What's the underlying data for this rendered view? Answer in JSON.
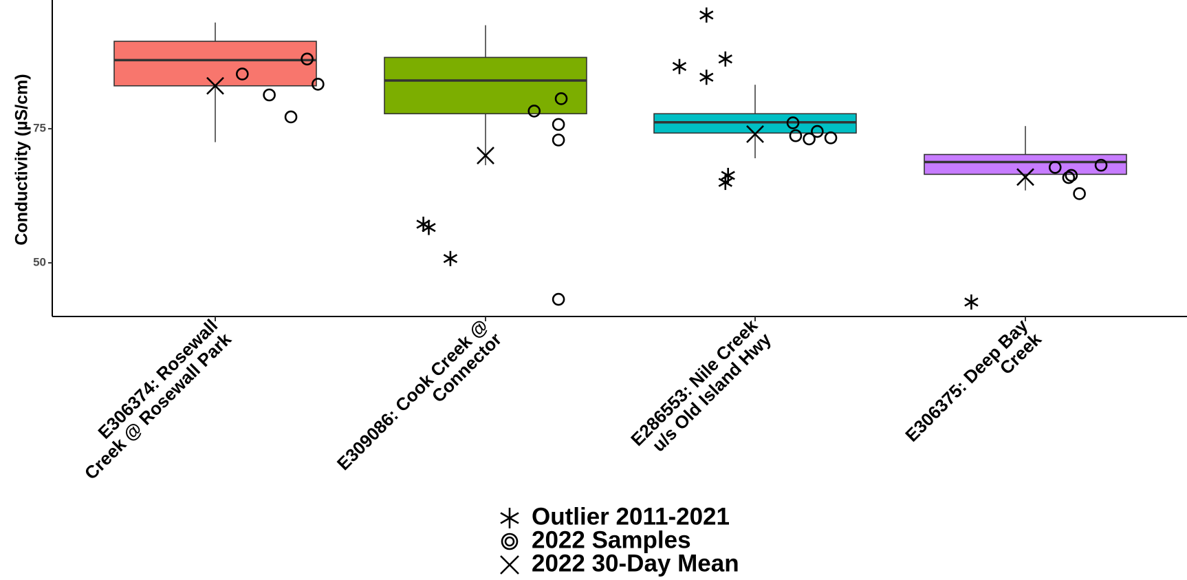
{
  "chart_data": {
    "type": "box",
    "ylabel": "Conductivity (µS/cm)",
    "xlabel": "",
    "yticks": [
      50,
      75
    ],
    "ylim": [
      40,
      99
    ],
    "grid": false,
    "legend_position": "bottom",
    "categories": [
      {
        "label": [
          "E306374: Rosewall",
          "Creek @ Rosewall Park"
        ],
        "color": "#F8766D",
        "box": {
          "whisker_low": 72.5,
          "q1": 83.0,
          "median": 87.8,
          "q3": 91.3,
          "whisker_high": 94.8
        },
        "outliers_2011_2021": [],
        "samples_2022": [
          {
            "x": 0.1,
            "y": 85.2
          },
          {
            "x": 0.2,
            "y": 81.3
          },
          {
            "x": 0.28,
            "y": 77.2
          },
          {
            "x": 0.34,
            "y": 88.0
          },
          {
            "x": 0.38,
            "y": 83.3
          }
        ],
        "mean_30day_2022": 83.0
      },
      {
        "label": [
          "E309086: Cook Creek @",
          "Connector"
        ],
        "color": "#7CAE00",
        "box": {
          "whisker_low": 68.2,
          "q1": 77.8,
          "median": 84.0,
          "q3": 88.3,
          "whisker_high": 94.3
        },
        "outliers_2011_2021": [
          {
            "x": -0.23,
            "y": 57.2
          },
          {
            "x": -0.21,
            "y": 56.6
          },
          {
            "x": -0.13,
            "y": 50.8
          }
        ],
        "samples_2022": [
          {
            "x": 0.18,
            "y": 78.3
          },
          {
            "x": 0.27,
            "y": 75.8
          },
          {
            "x": 0.27,
            "y": 72.9
          },
          {
            "x": 0.28,
            "y": 80.6
          },
          {
            "x": 0.27,
            "y": 43.2
          }
        ],
        "mean_30day_2022": 70.0
      },
      {
        "label": [
          "E286553: Nile Creek",
          "u/s Old Island Hwy"
        ],
        "color": "#00BFC4",
        "box": {
          "whisker_low": 69.5,
          "q1": 74.2,
          "median": 76.2,
          "q3": 77.8,
          "whisker_high": 83.2
        },
        "outliers_2011_2021": [
          {
            "x": -0.28,
            "y": 86.6
          },
          {
            "x": -0.18,
            "y": 96.2
          },
          {
            "x": -0.18,
            "y": 84.6
          },
          {
            "x": -0.11,
            "y": 88.0
          },
          {
            "x": -0.11,
            "y": 65.0
          },
          {
            "x": -0.1,
            "y": 66.3
          }
        ],
        "samples_2022": [
          {
            "x": 0.14,
            "y": 76.1
          },
          {
            "x": 0.15,
            "y": 73.7
          },
          {
            "x": 0.2,
            "y": 73.1
          },
          {
            "x": 0.23,
            "y": 74.5
          },
          {
            "x": 0.28,
            "y": 73.3
          }
        ],
        "mean_30day_2022": 74.0
      },
      {
        "label": [
          "E306375: Deep Bay",
          "Creek"
        ],
        "color": "#C77CFF",
        "box": {
          "whisker_low": 63.5,
          "q1": 66.5,
          "median": 68.8,
          "q3": 70.2,
          "whisker_high": 75.5
        },
        "outliers_2011_2021": [
          {
            "x": -0.2,
            "y": 42.7
          }
        ],
        "samples_2022": [
          {
            "x": 0.11,
            "y": 67.8
          },
          {
            "x": 0.16,
            "y": 65.9
          },
          {
            "x": 0.17,
            "y": 66.3
          },
          {
            "x": 0.2,
            "y": 62.9
          },
          {
            "x": 0.28,
            "y": 68.2
          }
        ],
        "mean_30day_2022": 66.0
      }
    ],
    "legend": [
      {
        "symbol": "asterisk",
        "label": "Outlier 2011-2021"
      },
      {
        "symbol": "circle",
        "label": "2022 Samples"
      },
      {
        "symbol": "cross",
        "label": "2022 30-Day Mean"
      }
    ]
  }
}
